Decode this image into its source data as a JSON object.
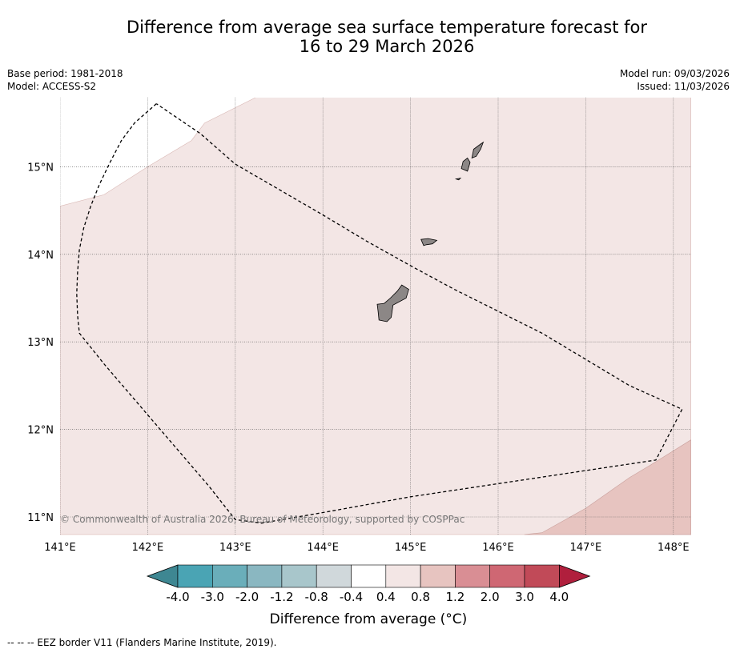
{
  "title": {
    "line1": "Difference from average sea surface temperature forecast for",
    "line2": "16 to 29 March 2026"
  },
  "meta_left": {
    "base_period": "Base period: 1981-2018",
    "model": "Model: ACCESS-S2"
  },
  "meta_right": {
    "model_run": "Model run: 09/03/2026",
    "issued": "Issued: 11/03/2026"
  },
  "map": {
    "lon_range": [
      141.0,
      148.2
    ],
    "lat_range": [
      10.8,
      15.8
    ],
    "lon_ticks": [
      {
        "value": 141,
        "label": "141°E"
      },
      {
        "value": 142,
        "label": "142°E"
      },
      {
        "value": 143,
        "label": "143°E"
      },
      {
        "value": 144,
        "label": "144°E"
      },
      {
        "value": 145,
        "label": "145°E"
      },
      {
        "value": 146,
        "label": "146°E"
      },
      {
        "value": 147,
        "label": "147°E"
      },
      {
        "value": 148,
        "label": "148°E"
      }
    ],
    "lat_ticks": [
      {
        "value": 11,
        "label": "11°N"
      },
      {
        "value": 12,
        "label": "12°N"
      },
      {
        "value": 13,
        "label": "13°N"
      },
      {
        "value": 14,
        "label": "14°N"
      },
      {
        "value": 15,
        "label": "15°N"
      }
    ],
    "copyright": "© Commonwealth of Australia 2026, Bureau of Meteorology, supported by COSPPac",
    "colors": {
      "anomaly_0_4_0_8": "#f3e6e5",
      "anomaly_0_8_1_2": "#e7c4c0",
      "land": "#8c8786"
    },
    "eez_border": [
      [
        142.1,
        15.72
      ],
      [
        141.85,
        15.5
      ],
      [
        141.7,
        15.3
      ],
      [
        141.57,
        15.05
      ],
      [
        141.45,
        14.8
      ],
      [
        141.35,
        14.55
      ],
      [
        141.27,
        14.3
      ],
      [
        141.22,
        14.05
      ],
      [
        141.2,
        13.8
      ],
      [
        141.19,
        13.55
      ],
      [
        141.2,
        13.3
      ],
      [
        141.22,
        13.1
      ],
      [
        141.5,
        12.75
      ],
      [
        141.8,
        12.4
      ],
      [
        142.1,
        12.05
      ],
      [
        142.4,
        11.7
      ],
      [
        142.7,
        11.35
      ],
      [
        143.0,
        10.97
      ],
      [
        143.3,
        10.93
      ],
      [
        144.0,
        11.05
      ],
      [
        145.0,
        11.23
      ],
      [
        146.0,
        11.38
      ],
      [
        147.0,
        11.53
      ],
      [
        147.8,
        11.65
      ],
      [
        148.1,
        12.23
      ],
      [
        147.5,
        12.5
      ],
      [
        146.5,
        13.1
      ],
      [
        145.5,
        13.6
      ],
      [
        145.0,
        13.87
      ],
      [
        144.5,
        14.15
      ],
      [
        144.0,
        14.45
      ],
      [
        143.0,
        15.03
      ],
      [
        142.6,
        15.38
      ],
      [
        142.1,
        15.72
      ]
    ],
    "region_light": [
      [
        141.0,
        14.55
      ],
      [
        141.5,
        14.68
      ],
      [
        142.0,
        15.0
      ],
      [
        142.5,
        15.3
      ],
      [
        142.65,
        15.5
      ],
      [
        143.25,
        15.8
      ],
      [
        148.2,
        15.8
      ],
      [
        148.2,
        10.8
      ],
      [
        141.0,
        10.8
      ]
    ],
    "region_medium": [
      [
        146.3,
        10.8
      ],
      [
        146.5,
        10.82
      ],
      [
        147.0,
        11.1
      ],
      [
        147.5,
        11.45
      ],
      [
        147.75,
        11.6
      ],
      [
        148.2,
        11.88
      ],
      [
        148.2,
        10.8
      ]
    ],
    "islands": [
      {
        "name": "guam",
        "points": [
          [
            144.9,
            13.65
          ],
          [
            144.98,
            13.6
          ],
          [
            144.95,
            13.5
          ],
          [
            144.8,
            13.42
          ],
          [
            144.78,
            13.28
          ],
          [
            144.73,
            13.23
          ],
          [
            144.64,
            13.25
          ],
          [
            144.63,
            13.35
          ],
          [
            144.62,
            13.43
          ],
          [
            144.7,
            13.44
          ],
          [
            144.77,
            13.5
          ],
          [
            144.85,
            13.58
          ]
        ]
      },
      {
        "name": "rota",
        "points": [
          [
            145.12,
            14.17
          ],
          [
            145.2,
            14.18
          ],
          [
            145.3,
            14.16
          ],
          [
            145.25,
            14.12
          ],
          [
            145.18,
            14.11
          ],
          [
            145.15,
            14.1
          ]
        ]
      },
      {
        "name": "tinian",
        "points": [
          [
            145.6,
            15.06
          ],
          [
            145.65,
            15.1
          ],
          [
            145.68,
            15.05
          ],
          [
            145.65,
            14.95
          ],
          [
            145.58,
            14.98
          ]
        ]
      },
      {
        "name": "saipan",
        "points": [
          [
            145.72,
            15.2
          ],
          [
            145.8,
            15.26
          ],
          [
            145.83,
            15.28
          ],
          [
            145.8,
            15.2
          ],
          [
            145.75,
            15.12
          ],
          [
            145.7,
            15.1
          ]
        ]
      },
      {
        "name": "aguijan",
        "points": [
          [
            145.52,
            14.86
          ],
          [
            145.57,
            14.87
          ],
          [
            145.55,
            14.85
          ]
        ]
      }
    ]
  },
  "colorbar": {
    "labels": [
      "-4.0",
      "-3.0",
      "-2.0",
      "-1.2",
      "-0.8",
      "-0.4",
      "0.4",
      "0.8",
      "1.2",
      "2.0",
      "3.0",
      "4.0"
    ],
    "colors": [
      "#4aa4b4",
      "#6aaeba",
      "#8ab7c1",
      "#a8c6cb",
      "#d0d8db",
      "#ffffff",
      "#f3e6e5",
      "#e7c4c0",
      "#d98e94",
      "#cf6773",
      "#c14a58"
    ],
    "under_color": "#3e8792",
    "over_color": "#b01f3d",
    "label": "Difference from average (°C)"
  },
  "footer": "--  --  -- EEZ border V11 (Flanders Marine Institute, 2019)."
}
